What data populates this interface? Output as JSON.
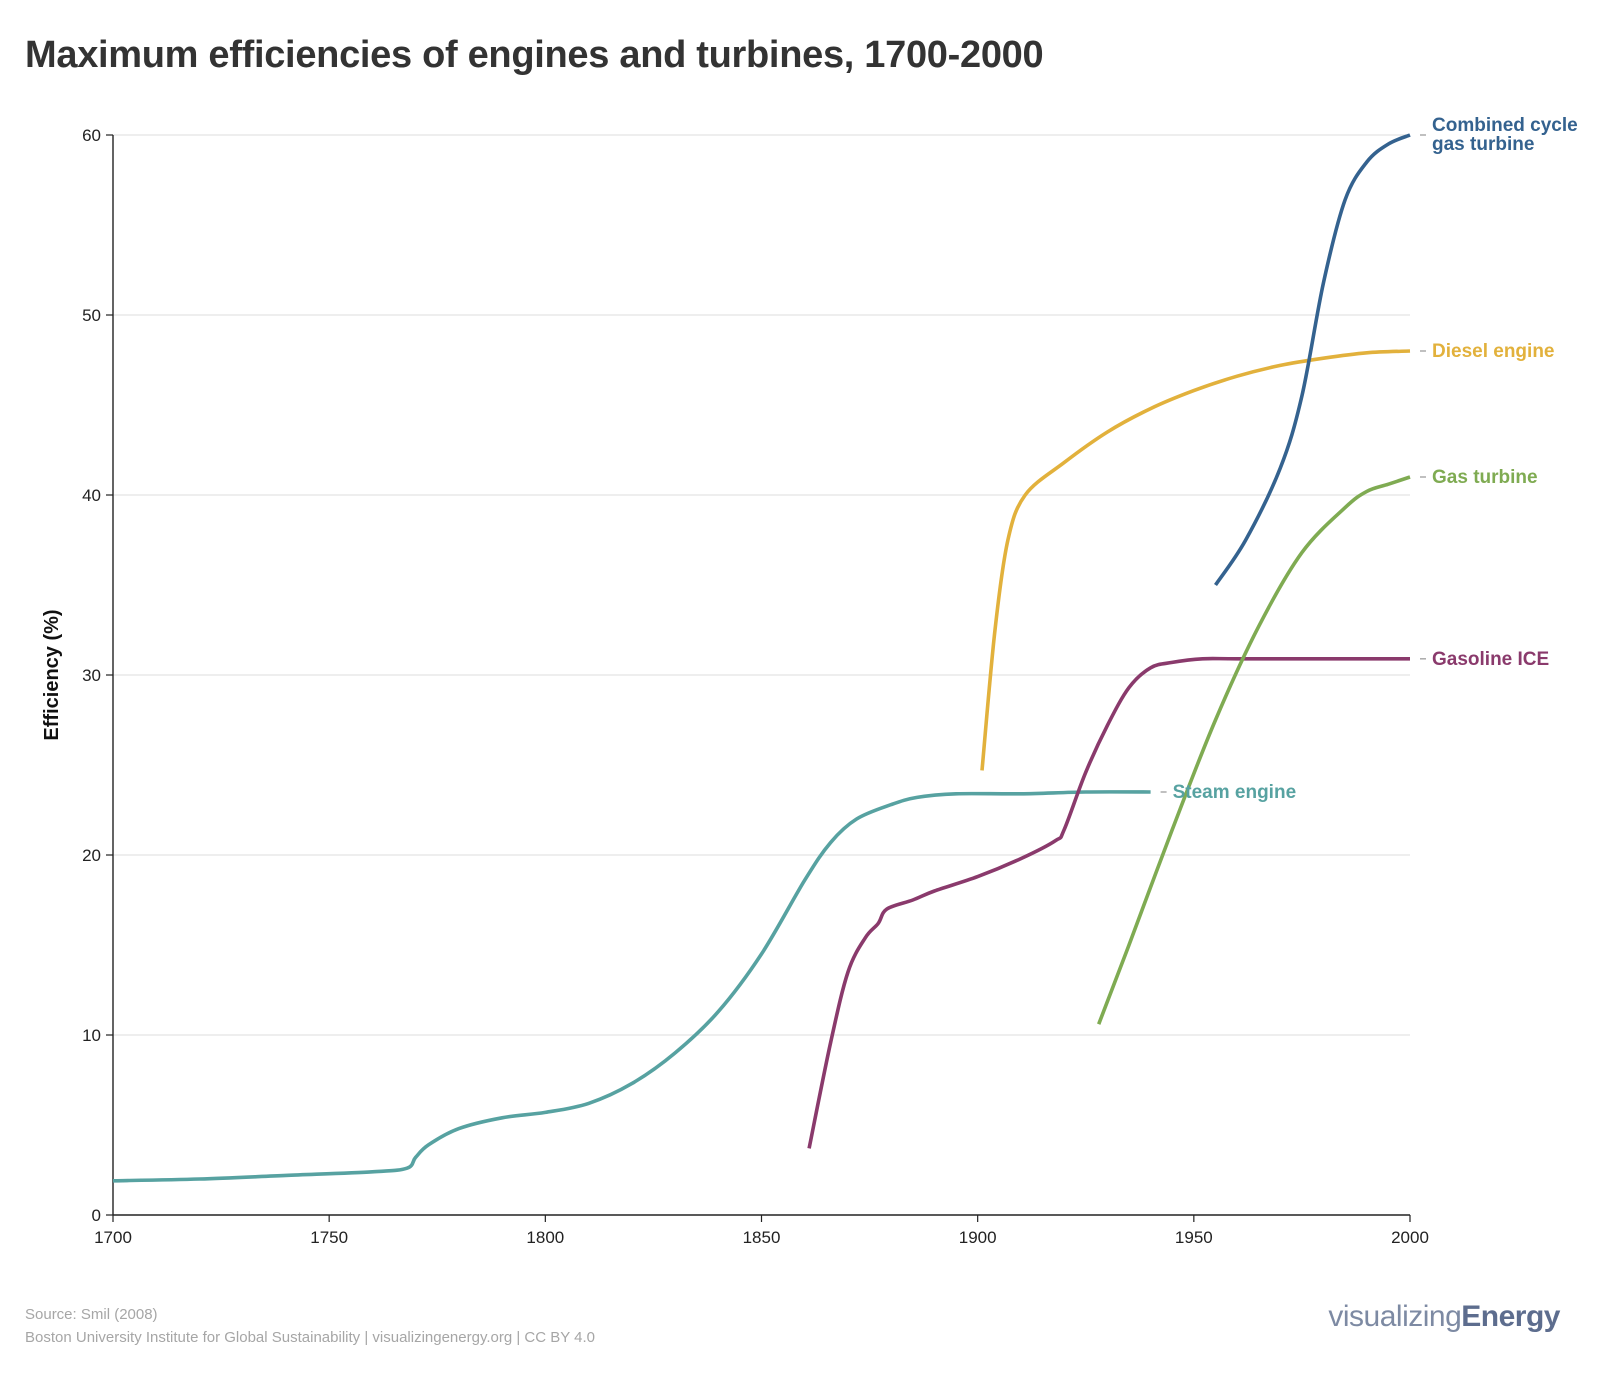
{
  "title": "Maximum efficiencies of engines and turbines, 1700-2000",
  "source_line": "Source: Smil (2008)",
  "credit_line": "Boston University Institute for Global Sustainability | visualizingenergy.org | CC BY 4.0",
  "logo": {
    "light": "visualizing",
    "bold": "Energy"
  },
  "colors": {
    "steam": "#57a2a1",
    "diesel": "#e2b13c",
    "gasoline": "#8a3a6c",
    "gas_turbine": "#7fab52",
    "ccgt": "#34628f",
    "grid": "#e8e8e8",
    "axis": "#222222"
  },
  "chart_data": {
    "type": "line",
    "title": "Maximum efficiencies of engines and turbines, 1700-2000",
    "xlabel": "",
    "ylabel": "Efficiency (%)",
    "xlim": [
      1700,
      2000
    ],
    "ylim": [
      0,
      60
    ],
    "x_ticks": [
      "1700",
      "1750",
      "1800",
      "1850",
      "1900",
      "1950",
      "2000"
    ],
    "y_ticks": [
      "0",
      "10",
      "20",
      "30",
      "40",
      "50",
      "60"
    ],
    "grid": "horizontal",
    "legend": "inline labels at line ends",
    "series": [
      {
        "id": "steam",
        "name": "Steam engine",
        "label_lines": [
          "Steam engine"
        ],
        "points": [
          [
            1700,
            1.9
          ],
          [
            1720,
            2.0
          ],
          [
            1740,
            2.2
          ],
          [
            1760,
            2.4
          ],
          [
            1768,
            2.6
          ],
          [
            1770,
            3.2
          ],
          [
            1773,
            3.9
          ],
          [
            1780,
            4.8
          ],
          [
            1790,
            5.4
          ],
          [
            1800,
            5.7
          ],
          [
            1810,
            6.2
          ],
          [
            1820,
            7.3
          ],
          [
            1830,
            9.0
          ],
          [
            1840,
            11.3
          ],
          [
            1850,
            14.5
          ],
          [
            1860,
            18.6
          ],
          [
            1866,
            20.7
          ],
          [
            1872,
            22.0
          ],
          [
            1880,
            22.8
          ],
          [
            1886,
            23.2
          ],
          [
            1895,
            23.4
          ],
          [
            1910,
            23.4
          ],
          [
            1925,
            23.5
          ],
          [
            1940,
            23.5
          ]
        ]
      },
      {
        "id": "diesel",
        "name": "Diesel engine",
        "label_lines": [
          "Diesel engine"
        ],
        "points": [
          [
            1901,
            24.7
          ],
          [
            1904,
            32.5
          ],
          [
            1907,
            37.5
          ],
          [
            1911,
            40.0
          ],
          [
            1920,
            41.8
          ],
          [
            1930,
            43.5
          ],
          [
            1940,
            44.8
          ],
          [
            1950,
            45.8
          ],
          [
            1960,
            46.6
          ],
          [
            1970,
            47.2
          ],
          [
            1980,
            47.6
          ],
          [
            1990,
            47.9
          ],
          [
            2000,
            48.0
          ]
        ]
      },
      {
        "id": "gasoline",
        "name": "Gasoline ICE",
        "label_lines": [
          "Gasoline ICE"
        ],
        "points": [
          [
            1861,
            3.7
          ],
          [
            1866,
            9.6
          ],
          [
            1870,
            13.5
          ],
          [
            1874,
            15.4
          ],
          [
            1877,
            16.2
          ],
          [
            1879,
            17.0
          ],
          [
            1885,
            17.5
          ],
          [
            1890,
            18.0
          ],
          [
            1900,
            18.8
          ],
          [
            1910,
            19.8
          ],
          [
            1918,
            20.8
          ],
          [
            1920,
            21.4
          ],
          [
            1925,
            24.6
          ],
          [
            1930,
            27.2
          ],
          [
            1935,
            29.3
          ],
          [
            1940,
            30.4
          ],
          [
            1945,
            30.7
          ],
          [
            1952,
            30.9
          ],
          [
            1960,
            30.9
          ],
          [
            1980,
            30.9
          ],
          [
            2000,
            30.9
          ]
        ]
      },
      {
        "id": "gas_turbine",
        "name": "Gas turbine",
        "label_lines": [
          "Gas turbine"
        ],
        "points": [
          [
            1928,
            10.6
          ],
          [
            1935,
            15.0
          ],
          [
            1945,
            21.4
          ],
          [
            1955,
            27.5
          ],
          [
            1965,
            32.7
          ],
          [
            1975,
            36.8
          ],
          [
            1985,
            39.3
          ],
          [
            1990,
            40.2
          ],
          [
            1995,
            40.6
          ],
          [
            2000,
            41.0
          ]
        ]
      },
      {
        "id": "ccgt",
        "name": "Combined cycle gas turbine",
        "label_lines": [
          "Combined cycle",
          "gas turbine"
        ],
        "points": [
          [
            1955,
            35.0
          ],
          [
            1962,
            37.5
          ],
          [
            1970,
            41.5
          ],
          [
            1975,
            45.5
          ],
          [
            1980,
            51.8
          ],
          [
            1985,
            56.4
          ],
          [
            1990,
            58.5
          ],
          [
            1995,
            59.5
          ],
          [
            2000,
            60.0
          ]
        ]
      }
    ]
  }
}
